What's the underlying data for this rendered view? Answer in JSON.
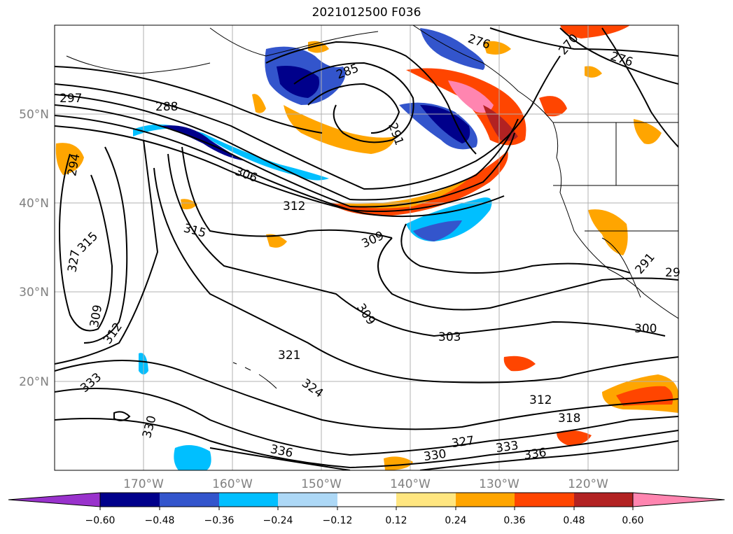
{
  "title": "2021012500 F036",
  "map": {
    "lon_labels": [
      "170°W",
      "160°W",
      "150°W",
      "140°W",
      "130°W",
      "120°W"
    ],
    "lat_labels": [
      "50°N",
      "40°N",
      "30°N",
      "20°N"
    ],
    "contour_labels": [
      {
        "text": "297"
      },
      {
        "text": "288"
      },
      {
        "text": "285"
      },
      {
        "text": "276"
      },
      {
        "text": "276"
      },
      {
        "text": "270"
      },
      {
        "text": "291"
      },
      {
        "text": "294"
      },
      {
        "text": "306"
      },
      {
        "text": "312"
      },
      {
        "text": "315"
      },
      {
        "text": "315"
      },
      {
        "text": "309"
      },
      {
        "text": "309"
      },
      {
        "text": "321"
      },
      {
        "text": "303"
      },
      {
        "text": "300"
      },
      {
        "text": "324"
      },
      {
        "text": "312"
      },
      {
        "text": "318"
      },
      {
        "text": "327"
      },
      {
        "text": "333"
      },
      {
        "text": "330"
      },
      {
        "text": "336"
      },
      {
        "text": "336"
      },
      {
        "text": "330"
      },
      {
        "text": "333"
      },
      {
        "text": "327"
      },
      {
        "text": "312"
      },
      {
        "text": "309"
      },
      {
        "text": "291"
      },
      {
        "text": "29"
      }
    ]
  },
  "colorbar": {
    "tick_labels": [
      "−0.60",
      "−0.48",
      "−0.36",
      "−0.24",
      "−0.12",
      "0.12",
      "0.24",
      "0.36",
      "0.48",
      "0.60"
    ],
    "bin_colors": [
      "#9932CC",
      "#00008B",
      "#3355CC",
      "#00BFFF",
      "#ADD8F6",
      "#FFFFFF",
      "#FFE680",
      "#FFA500",
      "#FF4500",
      "#B22222",
      "#FF85B0"
    ]
  }
}
